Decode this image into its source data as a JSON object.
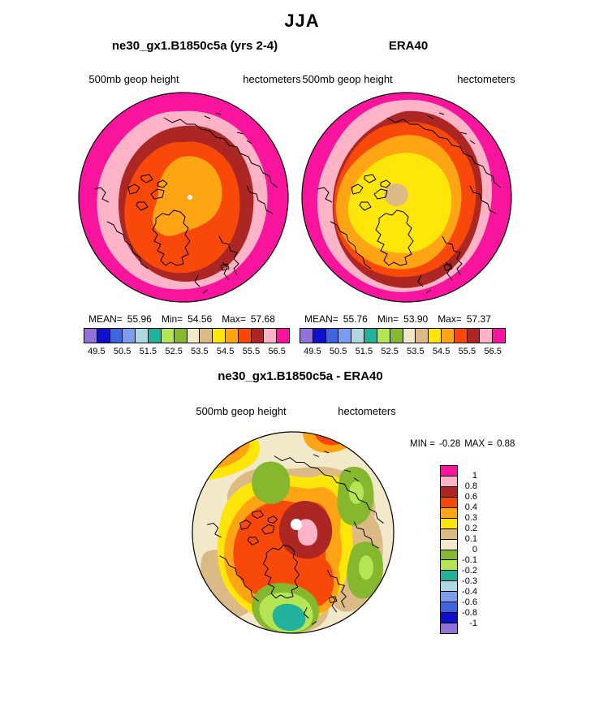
{
  "title": "JJA",
  "palette": {
    "purple": "#9272D8",
    "navy": "#0F10CC",
    "royal_blue": "#3E64DE",
    "cornflower": "#7B9DEE",
    "pale_cyan": "#AFD8E3",
    "teal": "#22B29C",
    "light_green": "#B5E455",
    "olive": "#85B82E",
    "beige": "#F2E9CB",
    "tan": "#DBBA86",
    "yellow": "#FFE60A",
    "orange": "#FFA414",
    "red_orange": "#F8480A",
    "dark_red": "#AC2623",
    "pink": "#FFB3C6",
    "magenta": "#F9149D",
    "white": "#FFFFFF",
    "coast": "#000000"
  },
  "panels": {
    "model": {
      "title": "ne30_gx1.B1850c5a (yrs 2-4)",
      "field_label": "500mb geop height",
      "units_label": "hectometers",
      "stats": {
        "mean_label": "MEAN=",
        "mean_value": "55.96",
        "min_label": "Min=",
        "min_value": "54.56",
        "max_label": "Max=",
        "max_value": "57.68"
      }
    },
    "reference": {
      "title": "ERA40",
      "field_label": "500mb geop height",
      "units_label": "hectometers",
      "stats": {
        "mean_label": "MEAN=",
        "mean_value": "55.76",
        "min_label": "Min=",
        "min_value": "53.90",
        "max_label": "Max=",
        "max_value": "57.37"
      }
    },
    "difference": {
      "title": "ne30_gx1.B1850c5a - ERA40",
      "field_label": "500mb geop height",
      "units_label": "hectometers",
      "stats": {
        "min_label": "MIN =",
        "min_value": "-0.28",
        "max_label": "MAX =",
        "max_value": "0.88"
      }
    }
  },
  "main_colorbar": {
    "segments": [
      "purple",
      "navy",
      "royal_blue",
      "cornflower",
      "pale_cyan",
      "teal",
      "light_green",
      "olive",
      "beige",
      "tan",
      "yellow",
      "orange",
      "red_orange",
      "dark_red",
      "pink",
      "magenta"
    ],
    "tick_labels": [
      "49.5",
      "50.5",
      "51.5",
      "52.5",
      "53.5",
      "54.5",
      "55.5",
      "56.5"
    ]
  },
  "diff_colorbar": {
    "segments": [
      "magenta",
      "pink",
      "dark_red",
      "red_orange",
      "orange",
      "yellow",
      "tan",
      "beige",
      "olive",
      "light_green",
      "teal",
      "pale_cyan",
      "cornflower",
      "royal_blue",
      "navy",
      "purple"
    ],
    "tick_labels": [
      "1",
      "0.8",
      "0.6",
      "0.4",
      "0.3",
      "0.2",
      "0.1",
      "0",
      "-0.1",
      "-0.2",
      "-0.3",
      "-0.4",
      "-0.6",
      "-0.8",
      "-1"
    ]
  },
  "chart_data": [
    {
      "type": "heatmap",
      "subtype": "north-polar-stereographic filled contour map",
      "title": "ne30_gx1.B1850c5a (yrs 2-4)",
      "season": "JJA",
      "variable": "500mb geop height",
      "units": "hectometers",
      "stats": {
        "mean": 55.96,
        "min": 54.56,
        "max": 57.68
      },
      "contour_levels": [
        49.5,
        50,
        50.5,
        51,
        51.5,
        52,
        52.5,
        53,
        53.5,
        54,
        54.5,
        55,
        55.5,
        56,
        56.5
      ],
      "labeled_levels": [
        49.5,
        50.5,
        51.5,
        52.5,
        53.5,
        54.5,
        55.5,
        56.5
      ],
      "band_colors_low_to_high": [
        "purple",
        "navy",
        "royal_blue",
        "cornflower",
        "pale_cyan",
        "teal",
        "light_green",
        "olive",
        "beige",
        "tan",
        "yellow",
        "orange",
        "red_orange",
        "dark_red",
        "pink",
        "magenta"
      ],
      "legend_position": "bottom",
      "pattern": "orange minimum centered near pole, rings of red_orange, dark_red, pink, magenta toward map edge"
    },
    {
      "type": "heatmap",
      "subtype": "north-polar-stereographic filled contour map",
      "title": "ERA40",
      "season": "JJA",
      "variable": "500mb geop height",
      "units": "hectometers",
      "stats": {
        "mean": 55.76,
        "min": 53.9,
        "max": 57.37
      },
      "contour_levels": [
        49.5,
        50,
        50.5,
        51,
        51.5,
        52,
        52.5,
        53,
        53.5,
        54,
        54.5,
        55,
        55.5,
        56,
        56.5
      ],
      "labeled_levels": [
        49.5,
        50.5,
        51.5,
        52.5,
        53.5,
        54.5,
        55.5,
        56.5
      ],
      "band_colors_low_to_high": [
        "purple",
        "navy",
        "royal_blue",
        "cornflower",
        "pale_cyan",
        "teal",
        "light_green",
        "olive",
        "beige",
        "tan",
        "yellow",
        "orange",
        "red_orange",
        "dark_red",
        "pink",
        "magenta"
      ],
      "legend_position": "bottom",
      "pattern": "tan minimum spot at pole inside large yellow core, rings of orange, red_orange, dark_red, pink, magenta toward edge"
    },
    {
      "type": "heatmap",
      "subtype": "north-polar-stereographic filled contour difference map",
      "title": "ne30_gx1.B1850c5a - ERA40",
      "season": "JJA",
      "variable": "500mb geop height",
      "units": "hectometers",
      "stats": {
        "min": -0.28,
        "max": 0.88
      },
      "contour_levels": [
        -1,
        -0.8,
        -0.6,
        -0.4,
        -0.3,
        -0.2,
        -0.1,
        0,
        0.1,
        0.2,
        0.3,
        0.4,
        0.6,
        0.8,
        1
      ],
      "band_colors_low_to_high": [
        "purple",
        "navy",
        "royal_blue",
        "cornflower",
        "pale_cyan",
        "teal",
        "light_green",
        "olive",
        "beige",
        "tan",
        "yellow",
        "orange",
        "red_orange",
        "dark_red",
        "pink",
        "magenta"
      ],
      "legend_position": "right",
      "pattern": "positive dark_red/pink maximum near pole over red_orange Arctic anomaly, beige/tan background, negative olive/light_green cells at mid-longitudes, teal minimum near Scandinavia side"
    }
  ]
}
